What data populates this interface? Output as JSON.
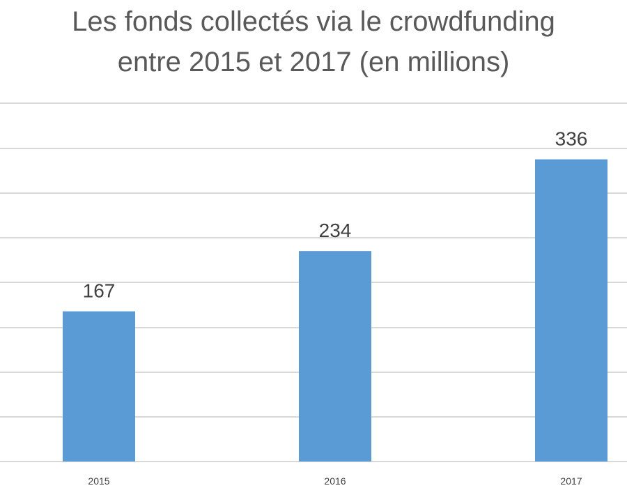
{
  "chart_data": {
    "type": "bar",
    "title_lines": [
      "Les fonds collectés via le crowdfunding",
      "entre 2015 et 2017 (en millions)"
    ],
    "categories": [
      "2015",
      "2016",
      "2017"
    ],
    "values": [
      167,
      234,
      336
    ],
    "data_labels": [
      "167",
      "234",
      "336"
    ],
    "xlabel": "",
    "ylabel": "",
    "ylim": [
      0,
      400
    ],
    "grid": true,
    "legend": "none",
    "colors": {
      "bar": "#5b9bd5",
      "grid": "#d9d9d9",
      "text": "#595959"
    }
  }
}
